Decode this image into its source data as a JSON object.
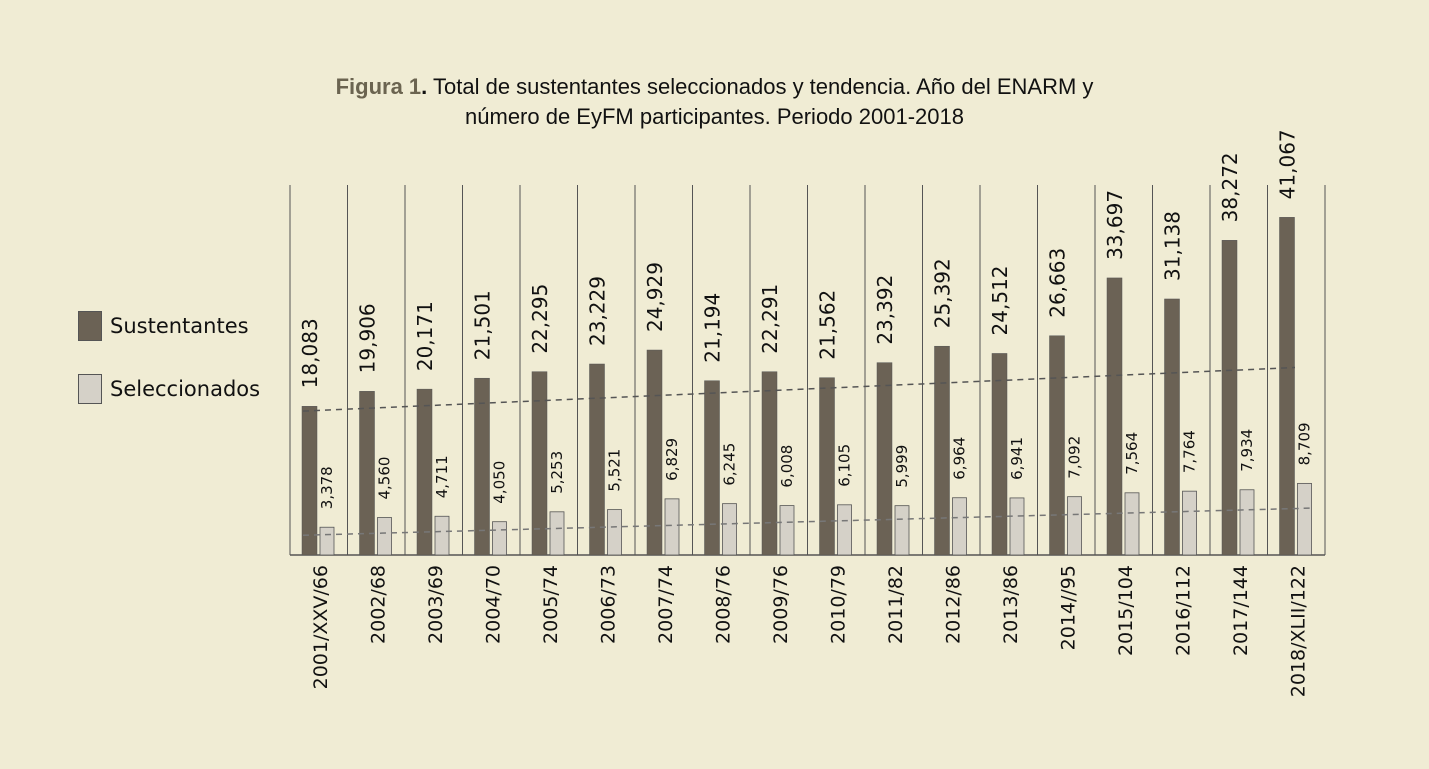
{
  "chart_data": {
    "type": "bar",
    "title_prefix": "Figura 1",
    "title_dot": ".",
    "title_line1": " Total de sustentantes seleccionados y tendencia. Año del ENARM y",
    "title_line2": "número de EyFM participantes. Periodo 2001-2018",
    "categories": [
      "2001/XXV/66",
      "2002/68",
      "2003/69",
      "2004/70",
      "2005/74",
      "2006/73",
      "2007/74",
      "2008/76",
      "2009/76",
      "2010/79",
      "2011/82",
      "2012/86",
      "2013/86",
      "2014//95",
      "2015/104",
      "2016/112",
      "2017/144",
      "2018/XLII/122"
    ],
    "series": [
      {
        "name": "Sustentantes",
        "color": "#6b6255",
        "values": [
          18083,
          19906,
          20171,
          21501,
          22295,
          23229,
          24929,
          21194,
          22291,
          21562,
          23392,
          25392,
          24512,
          26663,
          33697,
          31138,
          38272,
          41067
        ],
        "labels": [
          "18,083",
          "19,906",
          "20,171",
          "21,501",
          "22,295",
          "23,229",
          "24,929",
          "21,194",
          "22,291",
          "21,562",
          "23,392",
          "25,392",
          "24,512",
          "26,663",
          "33,697",
          "31,138",
          "38,272",
          "41,067"
        ]
      },
      {
        "name": "Seleccionados",
        "color": "#d5d1c8",
        "values": [
          3378,
          4560,
          4711,
          4050,
          5253,
          5521,
          6829,
          6245,
          6008,
          6105,
          5999,
          6964,
          6941,
          7092,
          7564,
          7764,
          7934,
          8709
        ],
        "labels": [
          "3,378",
          "4,560",
          "4,711",
          "4,050",
          "5,253",
          "5,521",
          "6,829",
          "6,245",
          "6,008",
          "6,105",
          "5,999",
          "6,964",
          "6,941",
          "7,092",
          "7,564",
          "7,764",
          "7,934",
          "8,709"
        ]
      }
    ],
    "trendlines": [
      {
        "series": "Sustentantes",
        "start": 17500,
        "end": 22800,
        "style": "dashed"
      },
      {
        "series": "Seleccionados",
        "start": 2400,
        "end": 5700,
        "style": "dashed"
      }
    ],
    "ylim": [
      0,
      45000
    ],
    "legend_position": "left",
    "grid": "vertical separators"
  }
}
